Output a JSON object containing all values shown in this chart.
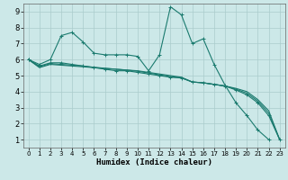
{
  "title": "",
  "xlabel": "Humidex (Indice chaleur)",
  "bg_color": "#cce8e8",
  "line_color": "#1a7a6e",
  "grid_color": "#aacccc",
  "xlim": [
    -0.5,
    23.5
  ],
  "ylim": [
    0.5,
    9.5
  ],
  "xticks": [
    0,
    1,
    2,
    3,
    4,
    5,
    6,
    7,
    8,
    9,
    10,
    11,
    12,
    13,
    14,
    15,
    16,
    17,
    18,
    19,
    20,
    21,
    22,
    23
  ],
  "yticks": [
    1,
    2,
    3,
    4,
    5,
    6,
    7,
    8,
    9
  ],
  "line1_x": [
    0,
    1,
    2,
    3,
    4,
    5,
    6,
    7,
    8,
    9,
    10,
    11,
    12,
    13,
    14,
    15,
    16,
    17,
    18,
    19,
    20,
    21,
    22
  ],
  "line1_y": [
    6.0,
    5.7,
    6.0,
    7.5,
    7.7,
    7.1,
    6.4,
    6.3,
    6.3,
    6.3,
    6.2,
    5.3,
    6.3,
    9.3,
    8.8,
    7.0,
    7.3,
    5.7,
    4.4,
    3.3,
    2.5,
    1.6,
    1.0
  ],
  "line2_x": [
    0,
    1,
    2,
    3,
    4,
    5,
    6,
    7,
    8,
    9,
    10,
    11,
    12,
    13,
    14,
    15,
    16,
    17,
    18,
    19,
    20,
    21,
    22,
    23
  ],
  "line2_y": [
    6.0,
    5.6,
    5.8,
    5.8,
    5.7,
    5.6,
    5.5,
    5.4,
    5.3,
    5.3,
    5.2,
    5.1,
    5.0,
    4.9,
    4.85,
    4.6,
    4.55,
    4.45,
    4.35,
    4.1,
    3.8,
    3.3,
    2.5,
    1.0
  ],
  "line3_x": [
    0,
    1,
    2,
    3,
    4,
    5,
    6,
    7,
    8,
    9,
    10,
    11,
    12,
    13,
    14,
    15,
    16,
    17,
    18,
    19,
    20,
    21,
    22,
    23
  ],
  "line3_y": [
    6.0,
    5.5,
    5.7,
    5.65,
    5.6,
    5.55,
    5.5,
    5.45,
    5.4,
    5.35,
    5.3,
    5.2,
    5.1,
    5.0,
    4.9,
    4.6,
    4.55,
    4.45,
    4.35,
    4.2,
    4.0,
    3.5,
    2.8,
    1.0
  ],
  "line4_x": [
    0,
    1,
    2,
    3,
    4,
    5,
    6,
    7,
    8,
    9,
    10,
    11,
    12,
    13,
    14,
    15,
    16,
    17,
    18,
    19,
    20,
    21,
    22,
    23
  ],
  "line4_y": [
    6.0,
    5.55,
    5.75,
    5.7,
    5.65,
    5.6,
    5.52,
    5.46,
    5.4,
    5.34,
    5.27,
    5.16,
    5.05,
    4.93,
    4.87,
    4.6,
    4.55,
    4.45,
    4.35,
    4.15,
    3.9,
    3.4,
    2.65,
    1.0
  ]
}
